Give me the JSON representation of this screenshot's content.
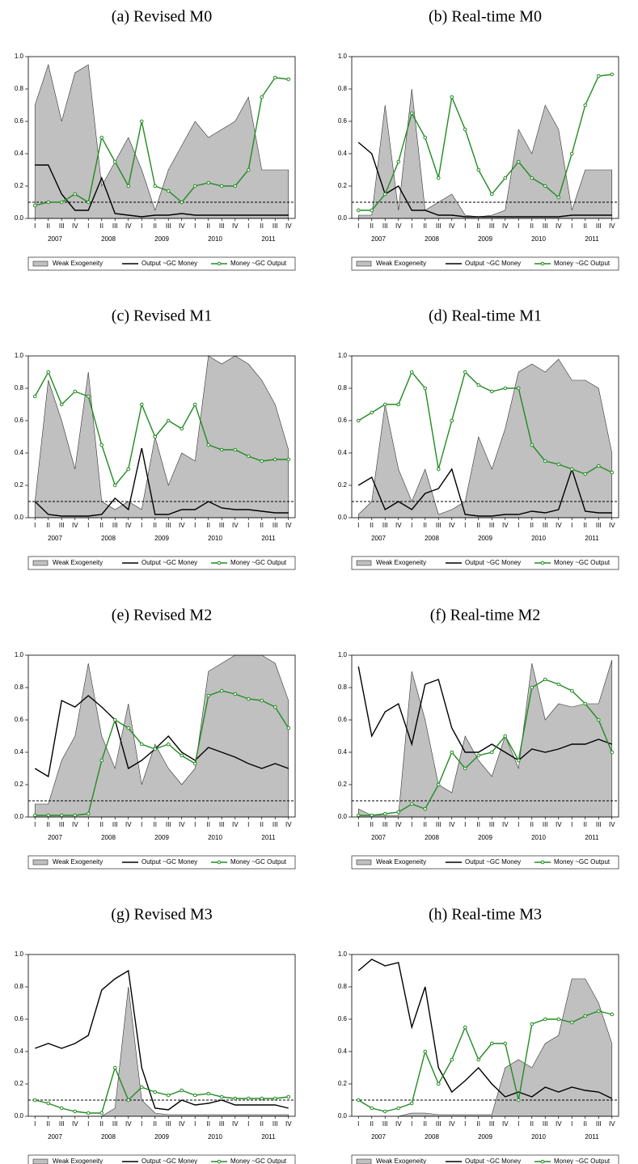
{
  "chart_data": [
    {
      "type": "line",
      "title": "(a) Revised M0",
      "categories": [
        "I",
        "II",
        "III",
        "IV",
        "I",
        "II",
        "III",
        "IV",
        "I",
        "II",
        "III",
        "IV",
        "I",
        "II",
        "III",
        "IV",
        "I",
        "II",
        "III",
        "IV"
      ],
      "years": [
        "2007",
        "2008",
        "2009",
        "2010",
        "2011"
      ],
      "ylim": [
        0,
        1
      ],
      "yticks": [
        {
          "value": 0,
          "label": "0.0"
        },
        0.2,
        0.4,
        0.6,
        0.8,
        {
          "value": 1,
          "label": "1.0"
        }
      ],
      "reference_line": 0.1,
      "series": [
        {
          "name": "Weak Exogeneity",
          "color": "#c0c0c0",
          "area": true,
          "values": [
            0.7,
            0.95,
            0.6,
            0.9,
            0.95,
            0.2,
            0.35,
            0.5,
            0.3,
            0.05,
            0.3,
            0.45,
            0.6,
            0.5,
            0.55,
            0.6,
            0.75,
            0.3,
            0.3,
            0.3
          ]
        },
        {
          "name": "Output ~GC Money",
          "color": "#000000",
          "values": [
            0.33,
            0.33,
            0.15,
            0.05,
            0.05,
            0.25,
            0.03,
            0.02,
            0.01,
            0.02,
            0.02,
            0.03,
            0.02,
            0.02,
            0.02,
            0.02,
            0.02,
            0.02,
            0.02,
            0.02
          ]
        },
        {
          "name": "Money ~GC Output",
          "color": "#228b22",
          "markers": true,
          "values": [
            0.08,
            0.1,
            0.1,
            0.15,
            0.1,
            0.5,
            0.35,
            0.2,
            0.6,
            0.2,
            0.17,
            0.1,
            0.2,
            0.22,
            0.2,
            0.2,
            0.3,
            0.75,
            0.87,
            0.86
          ]
        }
      ]
    },
    {
      "type": "line",
      "title": "(b) Real-time M0",
      "categories": [
        "I",
        "II",
        "III",
        "IV",
        "I",
        "II",
        "III",
        "IV",
        "I",
        "II",
        "III",
        "IV",
        "I",
        "II",
        "III",
        "IV",
        "I",
        "II",
        "III",
        "IV"
      ],
      "years": [
        "2007",
        "2008",
        "2009",
        "2010",
        "2011"
      ],
      "ylim": [
        0,
        1
      ],
      "yticks": [
        {
          "value": 0,
          "label": "0.0"
        },
        0.2,
        0.4,
        0.6,
        0.8,
        {
          "value": 1,
          "label": "1.0"
        }
      ],
      "reference_line": 0.1,
      "series": [
        {
          "name": "Weak Exogeneity",
          "color": "#c0c0c0",
          "area": true,
          "values": [
            0.02,
            0.02,
            0.7,
            0.05,
            0.8,
            0.05,
            0.1,
            0.15,
            0.02,
            0.01,
            0.02,
            0.05,
            0.55,
            0.4,
            0.7,
            0.55,
            0.05,
            0.3,
            0.3,
            0.3
          ]
        },
        {
          "name": "Output ~GC Money",
          "color": "#000000",
          "values": [
            0.47,
            0.4,
            0.15,
            0.2,
            0.05,
            0.05,
            0.02,
            0.02,
            0.01,
            0.01,
            0.01,
            0.01,
            0.01,
            0.01,
            0.01,
            0.01,
            0.02,
            0.02,
            0.02,
            0.02
          ]
        },
        {
          "name": "Money ~GC Output",
          "color": "#228b22",
          "markers": true,
          "values": [
            0.05,
            0.05,
            0.15,
            0.35,
            0.65,
            0.5,
            0.25,
            0.75,
            0.55,
            0.3,
            0.15,
            0.25,
            0.35,
            0.25,
            0.2,
            0.13,
            0.4,
            0.7,
            0.88,
            0.89
          ]
        }
      ]
    },
    {
      "type": "line",
      "title": "(c) Revised M1",
      "categories": [
        "I",
        "II",
        "III",
        "IV",
        "I",
        "II",
        "III",
        "IV",
        "I",
        "II",
        "III",
        "IV",
        "I",
        "II",
        "III",
        "IV",
        "I",
        "II",
        "III",
        "IV"
      ],
      "years": [
        "2007",
        "2008",
        "2009",
        "2010",
        "2011"
      ],
      "ylim": [
        0,
        1
      ],
      "yticks": [
        {
          "value": 0,
          "label": "0.0"
        },
        0.2,
        0.4,
        0.6,
        0.8,
        {
          "value": 1,
          "label": "1.0"
        }
      ],
      "reference_line": 0.1,
      "series": [
        {
          "name": "Weak Exogeneity",
          "color": "#c0c0c0",
          "area": true,
          "values": [
            0.1,
            0.85,
            0.6,
            0.3,
            0.9,
            0.1,
            0.05,
            0.1,
            0.05,
            0.5,
            0.2,
            0.4,
            0.35,
            1.0,
            0.95,
            1.0,
            0.95,
            0.85,
            0.7,
            0.42
          ]
        },
        {
          "name": "Output ~GC Money",
          "color": "#000000",
          "values": [
            0.1,
            0.02,
            0.01,
            0.01,
            0.01,
            0.02,
            0.12,
            0.05,
            0.43,
            0.02,
            0.02,
            0.05,
            0.05,
            0.1,
            0.06,
            0.05,
            0.05,
            0.04,
            0.03,
            0.03
          ]
        },
        {
          "name": "Money ~GC Output",
          "color": "#228b22",
          "markers": true,
          "values": [
            0.75,
            0.9,
            0.7,
            0.78,
            0.75,
            0.45,
            0.2,
            0.3,
            0.7,
            0.5,
            0.6,
            0.55,
            0.7,
            0.45,
            0.42,
            0.42,
            0.38,
            0.35,
            0.36,
            0.36
          ]
        }
      ]
    },
    {
      "type": "line",
      "title": "(d) Real-time M1",
      "categories": [
        "I",
        "II",
        "III",
        "IV",
        "I",
        "II",
        "III",
        "IV",
        "I",
        "II",
        "III",
        "IV",
        "I",
        "II",
        "III",
        "IV",
        "I",
        "II",
        "III",
        "IV"
      ],
      "years": [
        "2007",
        "2008",
        "2009",
        "2010",
        "2011"
      ],
      "ylim": [
        0,
        1
      ],
      "yticks": [
        {
          "value": 0,
          "label": "0.0"
        },
        0.2,
        0.4,
        0.6,
        0.8,
        {
          "value": 1,
          "label": "1.0"
        }
      ],
      "reference_line": 0.1,
      "series": [
        {
          "name": "Weak Exogeneity",
          "color": "#c0c0c0",
          "area": true,
          "values": [
            0.02,
            0.1,
            0.7,
            0.3,
            0.1,
            0.3,
            0.02,
            0.05,
            0.1,
            0.5,
            0.3,
            0.55,
            0.9,
            0.95,
            0.9,
            0.98,
            0.85,
            0.85,
            0.8,
            0.4
          ]
        },
        {
          "name": "Output ~GC Money",
          "color": "#000000",
          "values": [
            0.2,
            0.25,
            0.05,
            0.1,
            0.05,
            0.15,
            0.18,
            0.3,
            0.02,
            0.01,
            0.01,
            0.02,
            0.02,
            0.04,
            0.03,
            0.05,
            0.3,
            0.04,
            0.03,
            0.03
          ]
        },
        {
          "name": "Money ~GC Output",
          "color": "#228b22",
          "markers": true,
          "values": [
            0.6,
            0.65,
            0.7,
            0.7,
            0.9,
            0.8,
            0.3,
            0.6,
            0.9,
            0.82,
            0.78,
            0.8,
            0.8,
            0.45,
            0.35,
            0.33,
            0.3,
            0.27,
            0.32,
            0.28
          ]
        }
      ]
    },
    {
      "type": "line",
      "title": "(e) Revised M2",
      "categories": [
        "I",
        "II",
        "III",
        "IV",
        "I",
        "II",
        "III",
        "IV",
        "I",
        "II",
        "III",
        "IV",
        "I",
        "II",
        "III",
        "IV",
        "I",
        "II",
        "III",
        "IV"
      ],
      "years": [
        "2007",
        "2008",
        "2009",
        "2010",
        "2011"
      ],
      "ylim": [
        0,
        1
      ],
      "yticks": [
        {
          "value": 0,
          "label": "0.0"
        },
        0.2,
        0.4,
        0.6,
        0.8,
        {
          "value": 1,
          "label": "1.0"
        }
      ],
      "reference_line": 0.1,
      "series": [
        {
          "name": "Weak Exogeneity",
          "color": "#c0c0c0",
          "area": true,
          "values": [
            0.08,
            0.08,
            0.35,
            0.5,
            0.95,
            0.5,
            0.3,
            0.7,
            0.2,
            0.45,
            0.3,
            0.2,
            0.3,
            0.9,
            0.95,
            1.0,
            1.0,
            1.0,
            0.95,
            0.72
          ]
        },
        {
          "name": "Output ~GC Money",
          "color": "#000000",
          "values": [
            0.3,
            0.25,
            0.72,
            0.68,
            0.75,
            0.68,
            0.6,
            0.3,
            0.35,
            0.42,
            0.5,
            0.4,
            0.35,
            0.43,
            0.4,
            0.37,
            0.33,
            0.3,
            0.33,
            0.3
          ]
        },
        {
          "name": "Money ~GC Output",
          "color": "#228b22",
          "markers": true,
          "values": [
            0.01,
            0.01,
            0.01,
            0.01,
            0.02,
            0.35,
            0.6,
            0.55,
            0.45,
            0.42,
            0.45,
            0.38,
            0.33,
            0.75,
            0.78,
            0.76,
            0.73,
            0.72,
            0.68,
            0.55
          ]
        }
      ]
    },
    {
      "type": "line",
      "title": "(f) Real-time M2",
      "categories": [
        "I",
        "II",
        "III",
        "IV",
        "I",
        "II",
        "III",
        "IV",
        "I",
        "II",
        "III",
        "IV",
        "I",
        "II",
        "III",
        "IV",
        "I",
        "II",
        "III",
        "IV"
      ],
      "years": [
        "2007",
        "2008",
        "2009",
        "2010",
        "2011"
      ],
      "ylim": [
        0,
        1
      ],
      "yticks": [
        {
          "value": 0,
          "label": "0.0"
        },
        0.2,
        0.4,
        0.6,
        0.8,
        {
          "value": 1,
          "label": "1.0"
        }
      ],
      "reference_line": 0.1,
      "series": [
        {
          "name": "Weak Exogeneity",
          "color": "#c0c0c0",
          "area": true,
          "values": [
            0.05,
            0.01,
            0.01,
            0.01,
            0.9,
            0.6,
            0.2,
            0.15,
            0.5,
            0.35,
            0.25,
            0.5,
            0.3,
            0.95,
            0.6,
            0.7,
            0.68,
            0.7,
            0.7,
            0.97
          ]
        },
        {
          "name": "Output ~GC Money",
          "color": "#000000",
          "values": [
            0.93,
            0.5,
            0.65,
            0.7,
            0.45,
            0.82,
            0.85,
            0.55,
            0.4,
            0.4,
            0.45,
            0.4,
            0.35,
            0.42,
            0.4,
            0.42,
            0.45,
            0.45,
            0.48,
            0.45
          ]
        },
        {
          "name": "Money ~GC Output",
          "color": "#228b22",
          "markers": true,
          "values": [
            0.01,
            0.01,
            0.02,
            0.03,
            0.08,
            0.05,
            0.2,
            0.4,
            0.3,
            0.38,
            0.4,
            0.5,
            0.35,
            0.8,
            0.85,
            0.82,
            0.78,
            0.7,
            0.6,
            0.4
          ]
        }
      ]
    },
    {
      "type": "line",
      "title": "(g) Revised M3",
      "categories": [
        "I",
        "II",
        "III",
        "IV",
        "I",
        "II",
        "III",
        "IV",
        "I",
        "II",
        "III",
        "IV",
        "I",
        "II",
        "III",
        "IV",
        "I",
        "II",
        "III",
        "IV"
      ],
      "years": [
        "2007",
        "2008",
        "2009",
        "2010",
        "2011"
      ],
      "ylim": [
        0,
        1
      ],
      "yticks": [
        {
          "value": 0,
          "label": "0.0"
        },
        0.2,
        0.4,
        0.6,
        0.8,
        {
          "value": 1,
          "label": "1.0"
        }
      ],
      "reference_line": 0.1,
      "series": [
        {
          "name": "Weak Exogeneity",
          "color": "#c0c0c0",
          "area": true,
          "values": [
            0,
            0,
            0,
            0,
            0,
            0,
            0.05,
            0.8,
            0.1,
            0.02,
            0.01,
            0.01,
            0.01,
            0.01,
            0.01,
            0.01,
            0.01,
            0.01,
            0.01,
            0.01
          ]
        },
        {
          "name": "Output ~GC Money",
          "color": "#000000",
          "values": [
            0.42,
            0.45,
            0.42,
            0.45,
            0.5,
            0.78,
            0.85,
            0.9,
            0.3,
            0.05,
            0.04,
            0.1,
            0.07,
            0.08,
            0.1,
            0.07,
            0.07,
            0.07,
            0.07,
            0.05
          ]
        },
        {
          "name": "Money ~GC Output",
          "color": "#228b22",
          "markers": true,
          "values": [
            0.1,
            0.08,
            0.05,
            0.03,
            0.02,
            0.02,
            0.3,
            0.1,
            0.18,
            0.15,
            0.13,
            0.16,
            0.13,
            0.14,
            0.12,
            0.11,
            0.11,
            0.11,
            0.11,
            0.12
          ]
        }
      ]
    },
    {
      "type": "line",
      "title": "(h) Real-time M3",
      "categories": [
        "I",
        "II",
        "III",
        "IV",
        "I",
        "II",
        "III",
        "IV",
        "I",
        "II",
        "III",
        "IV",
        "I",
        "II",
        "III",
        "IV",
        "I",
        "II",
        "III",
        "IV"
      ],
      "years": [
        "2007",
        "2008",
        "2009",
        "2010",
        "2011"
      ],
      "ylim": [
        0,
        1
      ],
      "yticks": [
        {
          "value": 0,
          "label": "0.0"
        },
        0.2,
        0.4,
        0.6,
        0.8,
        {
          "value": 1,
          "label": "1.0"
        }
      ],
      "reference_line": 0.1,
      "series": [
        {
          "name": "Weak Exogeneity",
          "color": "#c0c0c0",
          "area": true,
          "values": [
            0,
            0,
            0,
            0,
            0.02,
            0.02,
            0.01,
            0.01,
            0.01,
            0.01,
            0.01,
            0.3,
            0.35,
            0.3,
            0.45,
            0.5,
            0.85,
            0.85,
            0.7,
            0.45
          ]
        },
        {
          "name": "Output ~GC Money",
          "color": "#000000",
          "values": [
            0.9,
            0.97,
            0.93,
            0.95,
            0.55,
            0.8,
            0.3,
            0.15,
            0.22,
            0.3,
            0.2,
            0.12,
            0.15,
            0.12,
            0.18,
            0.15,
            0.18,
            0.16,
            0.15,
            0.11
          ]
        },
        {
          "name": "Money ~GC Output",
          "color": "#228b22",
          "markers": true,
          "values": [
            0.1,
            0.05,
            0.03,
            0.05,
            0.08,
            0.4,
            0.2,
            0.35,
            0.55,
            0.35,
            0.45,
            0.45,
            0.1,
            0.57,
            0.6,
            0.6,
            0.58,
            0.62,
            0.65,
            0.63
          ]
        }
      ]
    }
  ]
}
